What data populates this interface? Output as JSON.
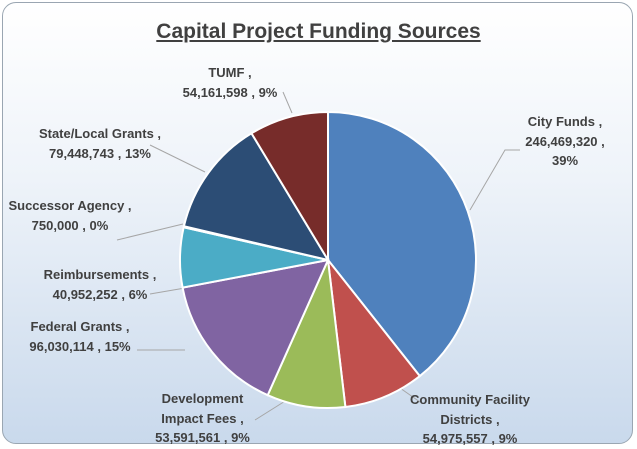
{
  "chart_data": {
    "type": "pie",
    "title": "Capital Project Funding Sources",
    "categories": [
      "City Funds",
      "Community Facility Districts",
      "Development Impact Fees",
      "Federal Grants",
      "Reimbursements",
      "Successor Agency",
      "State/Local Grants",
      "TUMF"
    ],
    "values": [
      246469320,
      54975557,
      53591561,
      96030114,
      40952252,
      750000,
      79448743,
      54161598
    ],
    "value_labels": [
      "246,469,320",
      "54,975,557",
      "53,591,561",
      "96,030,114",
      "40,952,252",
      "750,000",
      "79,448,743",
      "54,161,598"
    ],
    "percents": [
      39,
      9,
      9,
      15,
      6,
      0,
      13,
      9
    ],
    "percent_labels": [
      "39%",
      "9%",
      "9%",
      "15%",
      "6%",
      "0%",
      "13%",
      "9%"
    ],
    "colors": [
      "#4f81bd",
      "#c0504d",
      "#9bbb59",
      "#8064a2",
      "#4bacc6",
      "#f79646",
      "#2c4d75",
      "#772c2a"
    ]
  }
}
